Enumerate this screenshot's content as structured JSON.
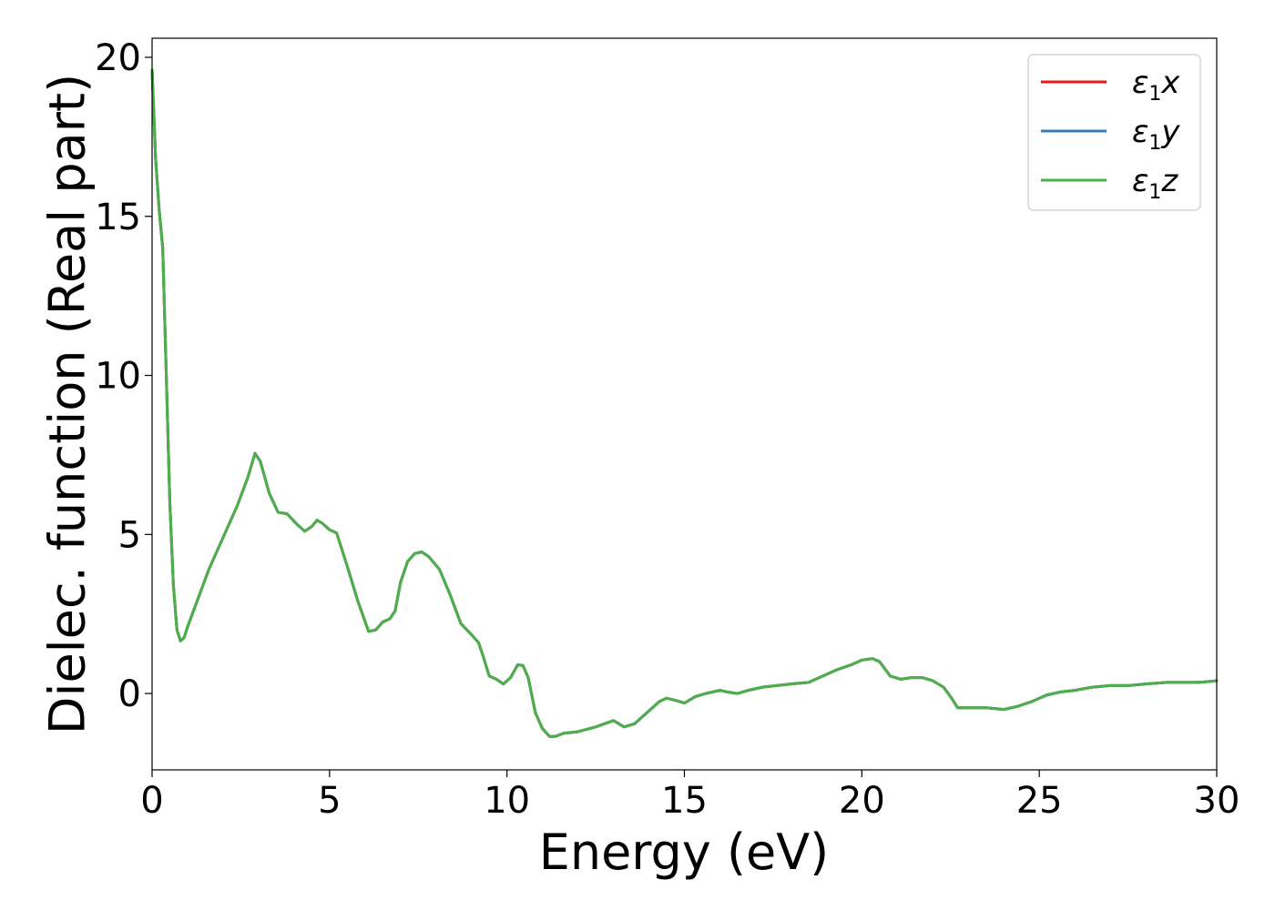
{
  "chart_data": {
    "type": "line",
    "title": "",
    "xlabel": "Energy (eV)",
    "ylabel": "Dielec. function (Real part)",
    "xlim": [
      0,
      30
    ],
    "ylim": [
      -2.4,
      20.6
    ],
    "xticks": [
      0,
      5,
      10,
      15,
      20,
      25,
      30
    ],
    "yticks": [
      0,
      5,
      10,
      15,
      20
    ],
    "grid": false,
    "legend_position": "top-right",
    "series": [
      {
        "name": "ε1x",
        "legend": {
          "base": "ε",
          "sub": "1",
          "axis": "x"
        },
        "color": "#e41a1c",
        "x": [
          0,
          0.1,
          0.2,
          0.3,
          0.4,
          0.5,
          0.6,
          0.7,
          0.8,
          0.9,
          1.0,
          1.3,
          1.6,
          2.0,
          2.4,
          2.7,
          2.9,
          3.05,
          3.3,
          3.55,
          3.8,
          4.1,
          4.3,
          4.5,
          4.65,
          4.8,
          5.0,
          5.2,
          5.5,
          5.8,
          6.1,
          6.3,
          6.5,
          6.7,
          6.85,
          7.0,
          7.2,
          7.4,
          7.6,
          7.8,
          8.1,
          8.4,
          8.7,
          9.0,
          9.2,
          9.35,
          9.5,
          9.7,
          9.9,
          10.1,
          10.3,
          10.45,
          10.6,
          10.8,
          11.0,
          11.2,
          11.35,
          11.6,
          12.0,
          12.5,
          13.0,
          13.3,
          13.6,
          14.0,
          14.3,
          14.5,
          14.7,
          15.0,
          15.3,
          15.6,
          16.0,
          16.2,
          16.5,
          16.8,
          17.2,
          17.6,
          18.0,
          18.5,
          18.9,
          19.3,
          19.7,
          20.0,
          20.3,
          20.5,
          20.8,
          21.1,
          21.4,
          21.7,
          22.0,
          22.3,
          22.5,
          22.7,
          23.0,
          23.5,
          24.0,
          24.4,
          24.8,
          25.2,
          25.6,
          26.0,
          26.5,
          27.0,
          27.5,
          28.0,
          28.6,
          29.0,
          29.5,
          30.0
        ],
        "y": [
          19.6,
          16.8,
          15.2,
          14.0,
          10.0,
          6.0,
          3.4,
          2.0,
          1.65,
          1.75,
          2.1,
          3.0,
          3.9,
          4.9,
          5.9,
          6.8,
          7.55,
          7.3,
          6.3,
          5.7,
          5.65,
          5.3,
          5.1,
          5.25,
          5.45,
          5.35,
          5.15,
          5.05,
          4.0,
          2.9,
          1.95,
          2.0,
          2.25,
          2.35,
          2.6,
          3.5,
          4.15,
          4.4,
          4.45,
          4.3,
          3.9,
          3.1,
          2.2,
          1.85,
          1.6,
          1.1,
          0.55,
          0.45,
          0.3,
          0.5,
          0.9,
          0.88,
          0.5,
          -0.6,
          -1.1,
          -1.35,
          -1.35,
          -1.25,
          -1.2,
          -1.05,
          -0.85,
          -1.05,
          -0.95,
          -0.55,
          -0.25,
          -0.15,
          -0.2,
          -0.3,
          -0.1,
          0.0,
          0.1,
          0.05,
          0.0,
          0.1,
          0.2,
          0.25,
          0.3,
          0.35,
          0.55,
          0.75,
          0.9,
          1.05,
          1.1,
          1.0,
          0.55,
          0.45,
          0.5,
          0.5,
          0.4,
          0.2,
          -0.1,
          -0.45,
          -0.45,
          -0.45,
          -0.5,
          -0.4,
          -0.25,
          -0.05,
          0.05,
          0.1,
          0.2,
          0.25,
          0.25,
          0.3,
          0.35,
          0.35,
          0.35,
          0.4
        ]
      },
      {
        "name": "ε1y",
        "legend": {
          "base": "ε",
          "sub": "1",
          "axis": "y"
        },
        "color": "#377eb8",
        "x": [
          0,
          0.1,
          0.2,
          0.3,
          0.4,
          0.5,
          0.6,
          0.7,
          0.8,
          0.9,
          1.0,
          1.3,
          1.6,
          2.0,
          2.4,
          2.7,
          2.9,
          3.05,
          3.3,
          3.55,
          3.8,
          4.1,
          4.3,
          4.5,
          4.65,
          4.8,
          5.0,
          5.2,
          5.5,
          5.8,
          6.1,
          6.3,
          6.5,
          6.7,
          6.85,
          7.0,
          7.2,
          7.4,
          7.6,
          7.8,
          8.1,
          8.4,
          8.7,
          9.0,
          9.2,
          9.35,
          9.5,
          9.7,
          9.9,
          10.1,
          10.3,
          10.45,
          10.6,
          10.8,
          11.0,
          11.2,
          11.35,
          11.6,
          12.0,
          12.5,
          13.0,
          13.3,
          13.6,
          14.0,
          14.3,
          14.5,
          14.7,
          15.0,
          15.3,
          15.6,
          16.0,
          16.2,
          16.5,
          16.8,
          17.2,
          17.6,
          18.0,
          18.5,
          18.9,
          19.3,
          19.7,
          20.0,
          20.3,
          20.5,
          20.8,
          21.1,
          21.4,
          21.7,
          22.0,
          22.3,
          22.5,
          22.7,
          23.0,
          23.5,
          24.0,
          24.4,
          24.8,
          25.2,
          25.6,
          26.0,
          26.5,
          27.0,
          27.5,
          28.0,
          28.6,
          29.0,
          29.5,
          30.0
        ],
        "y": [
          19.6,
          16.8,
          15.2,
          14.0,
          10.0,
          6.0,
          3.4,
          2.0,
          1.65,
          1.75,
          2.1,
          3.0,
          3.9,
          4.9,
          5.9,
          6.8,
          7.55,
          7.3,
          6.3,
          5.7,
          5.65,
          5.3,
          5.1,
          5.25,
          5.45,
          5.35,
          5.15,
          5.05,
          4.0,
          2.9,
          1.95,
          2.0,
          2.25,
          2.35,
          2.6,
          3.5,
          4.15,
          4.4,
          4.45,
          4.3,
          3.9,
          3.1,
          2.2,
          1.85,
          1.6,
          1.1,
          0.55,
          0.45,
          0.3,
          0.5,
          0.9,
          0.88,
          0.5,
          -0.6,
          -1.1,
          -1.35,
          -1.35,
          -1.25,
          -1.2,
          -1.05,
          -0.85,
          -1.05,
          -0.95,
          -0.55,
          -0.25,
          -0.15,
          -0.2,
          -0.3,
          -0.1,
          0.0,
          0.1,
          0.05,
          0.0,
          0.1,
          0.2,
          0.25,
          0.3,
          0.35,
          0.55,
          0.75,
          0.9,
          1.05,
          1.1,
          1.0,
          0.55,
          0.45,
          0.5,
          0.5,
          0.4,
          0.2,
          -0.1,
          -0.45,
          -0.45,
          -0.45,
          -0.5,
          -0.4,
          -0.25,
          -0.05,
          0.05,
          0.1,
          0.2,
          0.25,
          0.25,
          0.3,
          0.35,
          0.35,
          0.35,
          0.4
        ]
      },
      {
        "name": "ε1z",
        "legend": {
          "base": "ε",
          "sub": "1",
          "axis": "z"
        },
        "color": "#4daf4a",
        "x": [
          0,
          0.1,
          0.2,
          0.3,
          0.4,
          0.5,
          0.6,
          0.7,
          0.8,
          0.9,
          1.0,
          1.3,
          1.6,
          2.0,
          2.4,
          2.7,
          2.9,
          3.05,
          3.3,
          3.55,
          3.8,
          4.1,
          4.3,
          4.5,
          4.65,
          4.8,
          5.0,
          5.2,
          5.5,
          5.8,
          6.1,
          6.3,
          6.5,
          6.7,
          6.85,
          7.0,
          7.2,
          7.4,
          7.6,
          7.8,
          8.1,
          8.4,
          8.7,
          9.0,
          9.2,
          9.35,
          9.5,
          9.7,
          9.9,
          10.1,
          10.3,
          10.45,
          10.6,
          10.8,
          11.0,
          11.2,
          11.35,
          11.6,
          12.0,
          12.5,
          13.0,
          13.3,
          13.6,
          14.0,
          14.3,
          14.5,
          14.7,
          15.0,
          15.3,
          15.6,
          16.0,
          16.2,
          16.5,
          16.8,
          17.2,
          17.6,
          18.0,
          18.5,
          18.9,
          19.3,
          19.7,
          20.0,
          20.3,
          20.5,
          20.8,
          21.1,
          21.4,
          21.7,
          22.0,
          22.3,
          22.5,
          22.7,
          23.0,
          23.5,
          24.0,
          24.4,
          24.8,
          25.2,
          25.6,
          26.0,
          26.5,
          27.0,
          27.5,
          28.0,
          28.6,
          29.0,
          29.5,
          30.0
        ],
        "y": [
          19.6,
          16.8,
          15.2,
          14.0,
          10.0,
          6.0,
          3.4,
          2.0,
          1.65,
          1.75,
          2.1,
          3.0,
          3.9,
          4.9,
          5.9,
          6.8,
          7.55,
          7.3,
          6.3,
          5.7,
          5.65,
          5.3,
          5.1,
          5.25,
          5.45,
          5.35,
          5.15,
          5.05,
          4.0,
          2.9,
          1.95,
          2.0,
          2.25,
          2.35,
          2.6,
          3.5,
          4.15,
          4.4,
          4.45,
          4.3,
          3.9,
          3.1,
          2.2,
          1.85,
          1.6,
          1.1,
          0.55,
          0.45,
          0.3,
          0.5,
          0.9,
          0.88,
          0.5,
          -0.6,
          -1.1,
          -1.35,
          -1.35,
          -1.25,
          -1.2,
          -1.05,
          -0.85,
          -1.05,
          -0.95,
          -0.55,
          -0.25,
          -0.15,
          -0.2,
          -0.3,
          -0.1,
          0.0,
          0.1,
          0.05,
          0.0,
          0.1,
          0.2,
          0.25,
          0.3,
          0.35,
          0.55,
          0.75,
          0.9,
          1.05,
          1.1,
          1.0,
          0.55,
          0.45,
          0.5,
          0.5,
          0.4,
          0.2,
          -0.1,
          -0.45,
          -0.45,
          -0.45,
          -0.5,
          -0.4,
          -0.25,
          -0.05,
          0.05,
          0.1,
          0.2,
          0.25,
          0.25,
          0.3,
          0.35,
          0.35,
          0.35,
          0.4
        ]
      }
    ]
  }
}
